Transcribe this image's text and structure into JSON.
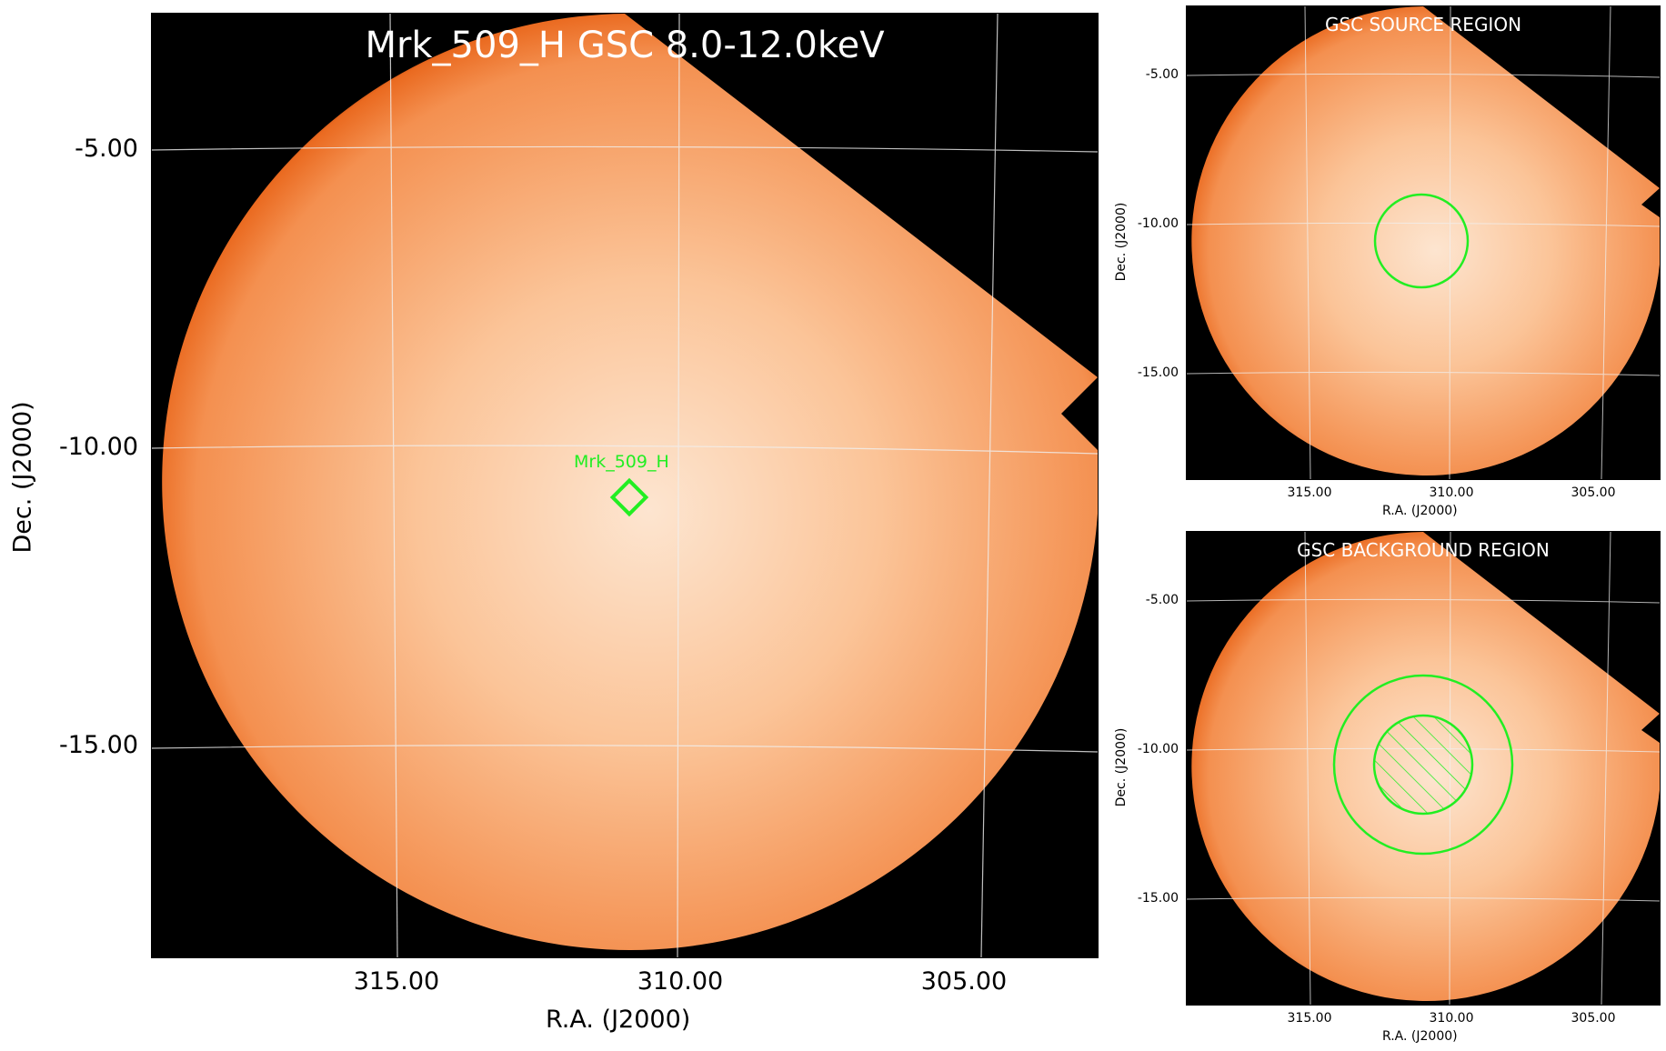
{
  "main": {
    "title": "Mrk_509_H GSC 8.0-12.0keV",
    "source_label": "Mrk_509_H",
    "y_ticks": [
      "-5.00",
      "-10.00",
      "-15.00"
    ],
    "x_ticks": [
      "315.00",
      "310.00",
      "305.00"
    ],
    "xlabel": "R.A. (J2000)",
    "ylabel": "Dec. (J2000)"
  },
  "source_panel": {
    "title": "GSC SOURCE REGION",
    "y_ticks": [
      "-5.00",
      "-10.00",
      "-15.00"
    ],
    "x_ticks": [
      "315.00",
      "310.00",
      "305.00"
    ],
    "xlabel": "R.A. (J2000)",
    "ylabel": "Dec. (J2000)"
  },
  "background_panel": {
    "title": "GSC BACKGROUND REGION",
    "y_ticks": [
      "-5.00",
      "-10.00",
      "-15.00"
    ],
    "x_ticks": [
      "315.00",
      "310.00",
      "305.00"
    ],
    "xlabel": "R.A. (J2000)",
    "ylabel": "Dec. (J2000)"
  },
  "colors": {
    "region": "#22ee22",
    "image_edge": "#e8621c",
    "image_center": "#fde6d2",
    "grid": "#e8e8e8",
    "title": "#ffffff"
  }
}
